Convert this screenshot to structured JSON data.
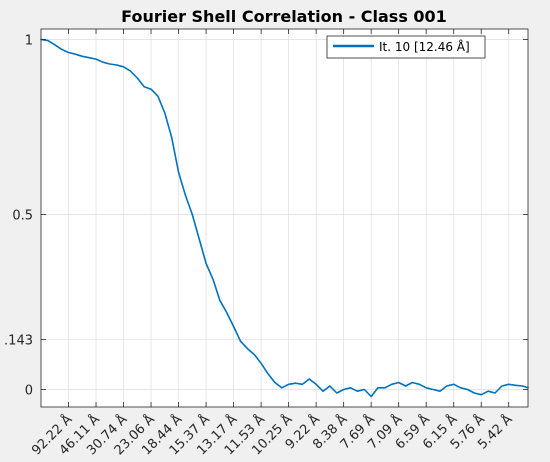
{
  "chart_data": {
    "type": "line",
    "title": "Fourier Shell Correlation - Class 001",
    "xlabel": "",
    "ylabel": "",
    "x_tick_labels": [
      "92.22 Å",
      "46.11 Å",
      "30.74 Å",
      "23.06 Å",
      "18.44 Å",
      "15.37 Å",
      "13.17 Å",
      "11.53 Å",
      "10.25 Å",
      "9.22 Å",
      "8.38 Å",
      "7.69 Å",
      "7.09 Å",
      "6.59 Å",
      "6.15 Å",
      "5.76 Å",
      "5.42 Å"
    ],
    "y_tick_labels": [
      "1",
      "0.5",
      ".143",
      "0"
    ],
    "y_ticks": [
      1,
      0.5,
      0.143,
      0
    ],
    "xlim": [
      0,
      17.7
    ],
    "ylim": [
      -0.05,
      1.03
    ],
    "grid": true,
    "legend_position": "top-right",
    "series": [
      {
        "name": "It. 10 [12.46 Å]",
        "color": "#0072bd",
        "x": [
          0,
          0.25,
          0.5,
          0.75,
          1,
          1.25,
          1.5,
          1.75,
          2,
          2.25,
          2.5,
          2.75,
          3,
          3.25,
          3.5,
          3.75,
          4,
          4.25,
          4.5,
          4.75,
          5,
          5.25,
          5.5,
          5.75,
          6,
          6.25,
          6.5,
          6.75,
          7,
          7.25,
          7.5,
          7.75,
          8,
          8.25,
          8.5,
          8.75,
          9,
          9.25,
          9.5,
          9.75,
          10,
          10.25,
          10.5,
          10.75,
          11,
          11.25,
          11.5,
          11.75,
          12,
          12.25,
          12.5,
          12.75,
          13,
          13.25,
          13.5,
          13.75,
          14,
          14.25,
          14.5,
          14.75,
          15,
          15.25,
          15.5,
          15.75,
          16,
          16.25,
          16.5,
          16.75,
          17,
          17.25,
          17.5,
          17.7
        ],
        "y": [
          1.0,
          0.997,
          0.985,
          0.972,
          0.963,
          0.958,
          0.952,
          0.948,
          0.944,
          0.935,
          0.93,
          0.927,
          0.922,
          0.91,
          0.89,
          0.865,
          0.858,
          0.838,
          0.79,
          0.72,
          0.62,
          0.555,
          0.5,
          0.43,
          0.36,
          0.315,
          0.255,
          0.22,
          0.18,
          0.138,
          0.117,
          0.1,
          0.075,
          0.045,
          0.02,
          0.005,
          0.015,
          0.018,
          0.015,
          0.03,
          0.015,
          -0.005,
          0.01,
          -0.01,
          0.0,
          0.005,
          -0.005,
          0.0,
          -0.02,
          0.005,
          0.005,
          0.015,
          0.02,
          0.01,
          0.02,
          0.015,
          0.005,
          0.0,
          -0.005,
          0.01,
          0.015,
          0.005,
          0.0,
          -0.01,
          -0.015,
          -0.005,
          -0.01,
          0.01,
          0.015,
          0.012,
          0.01,
          0.005
        ]
      }
    ]
  }
}
